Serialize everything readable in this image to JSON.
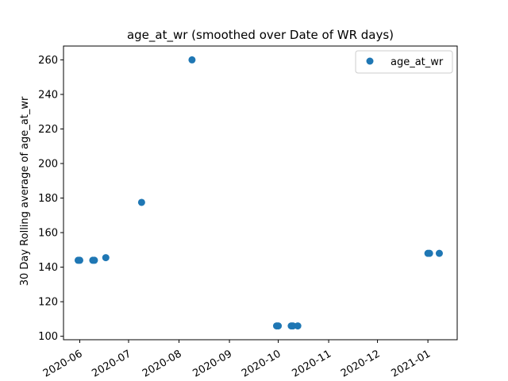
{
  "chart_data": {
    "type": "scatter",
    "title": "age_at_wr (smoothed over Date of WR days)",
    "xlabel": "",
    "ylabel": "30 Day Rolling average of age_at_wr",
    "x_type": "date",
    "xlim": [
      "2020-05-22",
      "2021-01-19"
    ],
    "ylim": [
      98,
      268
    ],
    "x_ticks": [
      "2020-06-01",
      "2020-07-01",
      "2020-08-01",
      "2020-09-01",
      "2020-10-01",
      "2020-11-01",
      "2020-12-01",
      "2021-01-01"
    ],
    "x_tick_labels": [
      "2020-06",
      "2020-07",
      "2020-08",
      "2020-09",
      "2020-10",
      "2020-11",
      "2020-12",
      "2021-01"
    ],
    "y_ticks": [
      100,
      120,
      140,
      160,
      180,
      200,
      220,
      240,
      260
    ],
    "y_tick_labels": [
      "100",
      "120",
      "140",
      "160",
      "180",
      "200",
      "220",
      "240",
      "260"
    ],
    "grid": false,
    "legend_position": "top-right",
    "series": [
      {
        "name": "age_at_wr",
        "color": "#1f77b4",
        "points": [
          {
            "x": "2020-05-31",
            "y": 144
          },
          {
            "x": "2020-06-01",
            "y": 144
          },
          {
            "x": "2020-06-09",
            "y": 144
          },
          {
            "x": "2020-06-10",
            "y": 144
          },
          {
            "x": "2020-06-17",
            "y": 145.5
          },
          {
            "x": "2020-07-09",
            "y": 177.5
          },
          {
            "x": "2020-08-09",
            "y": 260
          },
          {
            "x": "2020-09-30",
            "y": 106
          },
          {
            "x": "2020-10-01",
            "y": 106
          },
          {
            "x": "2020-10-09",
            "y": 106
          },
          {
            "x": "2020-10-10",
            "y": 106
          },
          {
            "x": "2020-10-13",
            "y": 106
          },
          {
            "x": "2021-01-01",
            "y": 148
          },
          {
            "x": "2021-01-02",
            "y": 148
          },
          {
            "x": "2021-01-08",
            "y": 148
          }
        ]
      }
    ]
  }
}
